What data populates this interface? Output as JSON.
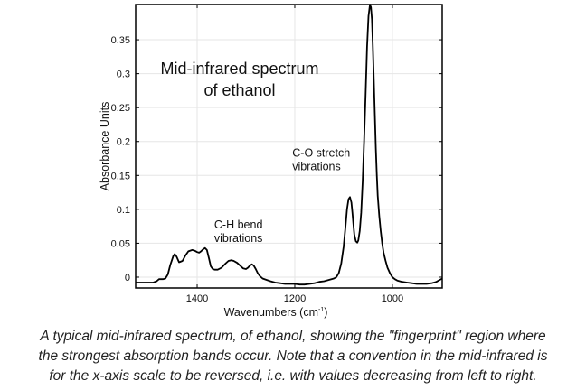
{
  "chart_data": {
    "type": "line",
    "title": "Mid-infrared spectrum of ethanol",
    "title_lines": [
      "Mid-infrared spectrum",
      "of ethanol"
    ],
    "xlabel": "Wavenumbers (cm⁻¹)",
    "xlabel_main": "Wavenumbers (cm",
    "xlabel_sup": "-1",
    "xlabel_close": ")",
    "ylabel": "Absorbance Units",
    "xlim": [
      1526,
      898
    ],
    "x_reversed": true,
    "ylim": [
      -0.016,
      0.402
    ],
    "xticks": [
      1400,
      1200,
      1000
    ],
    "yticks": [
      0,
      0.05,
      0.1,
      0.15,
      0.2,
      0.25,
      0.3,
      0.35
    ],
    "ytick_labels": [
      "0",
      "0.05",
      "0.1",
      "0.15",
      "0.2",
      "0.25",
      "0.3",
      "0.35"
    ],
    "grid": true,
    "annotations": [
      {
        "lines": [
          "C-H bend",
          "vibrations"
        ],
        "x": 1365,
        "y": 0.072
      },
      {
        "lines": [
          "C-O stretch",
          "vibrations"
        ],
        "x": 1205,
        "y": 0.178
      }
    ],
    "series": [
      {
        "name": "ethanol",
        "color": "#000000",
        "x": [
          1526,
          1500,
          1490,
          1483,
          1478,
          1470,
          1465,
          1460,
          1455,
          1449,
          1446,
          1442,
          1437,
          1430,
          1424,
          1418,
          1410,
          1405,
          1400,
          1396,
          1392,
          1388,
          1384,
          1380,
          1376,
          1372,
          1368,
          1364,
          1358,
          1350,
          1342,
          1336,
          1330,
          1325,
          1318,
          1312,
          1306,
          1300,
          1296,
          1292,
          1288,
          1284,
          1280,
          1276,
          1272,
          1266,
          1258,
          1250,
          1240,
          1230,
          1220,
          1210,
          1200,
          1190,
          1180,
          1170,
          1160,
          1150,
          1140,
          1130,
          1120,
          1115,
          1110,
          1105,
          1100,
          1096,
          1093,
          1090,
          1087,
          1084,
          1082,
          1080,
          1078,
          1075,
          1072,
          1070,
          1067,
          1064,
          1061,
          1058,
          1055,
          1052,
          1049,
          1046,
          1044,
          1042,
          1040,
          1038,
          1036,
          1034,
          1032,
          1030,
          1027,
          1024,
          1021,
          1018,
          1014,
          1010,
          1005,
          1000,
          995,
          990,
          980,
          970,
          960,
          950,
          940,
          930,
          920,
          910,
          898
        ],
        "y": [
          -0.008,
          -0.008,
          -0.008,
          -0.006,
          -0.003,
          -0.003,
          -0.002,
          0.004,
          0.018,
          0.031,
          0.034,
          0.03,
          0.022,
          0.024,
          0.032,
          0.038,
          0.04,
          0.039,
          0.037,
          0.036,
          0.038,
          0.041,
          0.043,
          0.04,
          0.028,
          0.016,
          0.012,
          0.011,
          0.011,
          0.014,
          0.02,
          0.024,
          0.025,
          0.024,
          0.021,
          0.017,
          0.013,
          0.012,
          0.014,
          0.017,
          0.019,
          0.017,
          0.012,
          0.006,
          0.002,
          -0.002,
          -0.004,
          -0.006,
          -0.008,
          -0.009,
          -0.01,
          -0.01,
          -0.01,
          -0.011,
          -0.011,
          -0.01,
          -0.009,
          -0.007,
          -0.006,
          -0.004,
          -0.002,
          0.0,
          0.006,
          0.02,
          0.045,
          0.075,
          0.1,
          0.115,
          0.118,
          0.11,
          0.095,
          0.078,
          0.063,
          0.053,
          0.051,
          0.054,
          0.068,
          0.095,
          0.14,
          0.2,
          0.27,
          0.34,
          0.385,
          0.402,
          0.398,
          0.38,
          0.34,
          0.29,
          0.24,
          0.19,
          0.15,
          0.12,
          0.09,
          0.068,
          0.05,
          0.036,
          0.024,
          0.014,
          0.006,
          0.0,
          -0.003,
          -0.005,
          -0.007,
          -0.008,
          -0.009,
          -0.01,
          -0.01,
          -0.01,
          -0.009,
          -0.007,
          -0.002
        ]
      }
    ]
  },
  "caption": {
    "lines": [
      "A typical mid-infrared spectrum, of ethanol, showing the \"fingerprint\" region where",
      "the strongest absorption bands occur.  Note that a convention in the mid-infrared is",
      "for the x-axis scale to be reversed, i.e. with values decreasing from left to right."
    ]
  }
}
